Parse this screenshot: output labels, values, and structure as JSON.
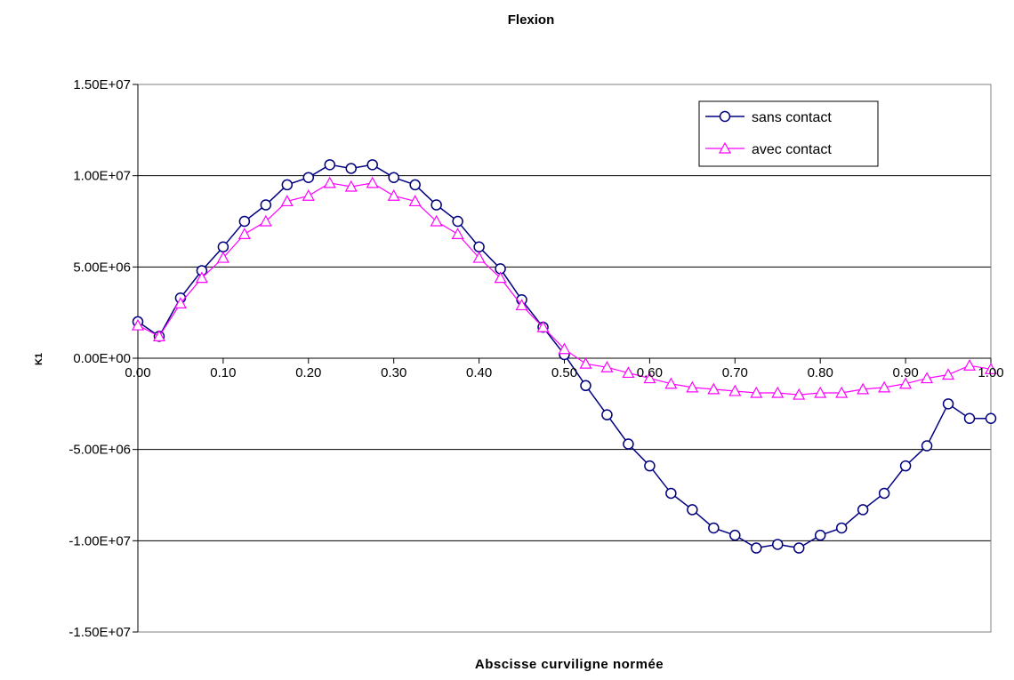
{
  "chart_data": {
    "type": "line",
    "title": "Flexion",
    "xlabel": "Abscisse curviligne normée",
    "ylabel": "K1",
    "xlim": [
      0,
      1
    ],
    "ylim": [
      -15000000,
      15000000
    ],
    "x_ticks": [
      {
        "value": 0.0,
        "label": "0.00"
      },
      {
        "value": 0.1,
        "label": "0.10"
      },
      {
        "value": 0.2,
        "label": "0.20"
      },
      {
        "value": 0.3,
        "label": "0.30"
      },
      {
        "value": 0.4,
        "label": "0.40"
      },
      {
        "value": 0.5,
        "label": "0.50"
      },
      {
        "value": 0.6,
        "label": "0.60"
      },
      {
        "value": 0.7,
        "label": "0.70"
      },
      {
        "value": 0.8,
        "label": "0.80"
      },
      {
        "value": 0.9,
        "label": "0.90"
      },
      {
        "value": 1.0,
        "label": "1.00"
      }
    ],
    "y_ticks": [
      {
        "value": 15000000,
        "label": "1.50E+07"
      },
      {
        "value": 10000000,
        "label": "1.00E+07"
      },
      {
        "value": 5000000,
        "label": "5.00E+06"
      },
      {
        "value": 0,
        "label": "0.00E+00"
      },
      {
        "value": -5000000,
        "label": "-5.00E+06"
      },
      {
        "value": -10000000,
        "label": "-1.00E+07"
      },
      {
        "value": -15000000,
        "label": "-1.50E+07"
      }
    ],
    "grid": "horizontal",
    "legend_position": "top-right",
    "x": [
      0.0,
      0.025,
      0.05,
      0.075,
      0.1,
      0.125,
      0.15,
      0.175,
      0.2,
      0.225,
      0.25,
      0.275,
      0.3,
      0.325,
      0.35,
      0.375,
      0.4,
      0.425,
      0.45,
      0.475,
      0.5,
      0.525,
      0.55,
      0.575,
      0.6,
      0.625,
      0.65,
      0.675,
      0.7,
      0.725,
      0.75,
      0.775,
      0.8,
      0.825,
      0.85,
      0.875,
      0.9,
      0.925,
      0.95,
      0.975,
      1.0
    ],
    "series": [
      {
        "name": "sans contact",
        "color": "#000080",
        "marker": "circle",
        "values": [
          2000000,
          1200000,
          3300000,
          4800000,
          6100000,
          7500000,
          8400000,
          9500000,
          9900000,
          10600000,
          10400000,
          10600000,
          9900000,
          9500000,
          8400000,
          7500000,
          6100000,
          4900000,
          3200000,
          1700000,
          200000,
          -1500000,
          -3100000,
          -4700000,
          -5900000,
          -7400000,
          -8300000,
          -9300000,
          -9700000,
          -10400000,
          -10200000,
          -10400000,
          -9700000,
          -9300000,
          -8300000,
          -7400000,
          -5900000,
          -4800000,
          -2500000,
          -3300000,
          -3300000
        ]
      },
      {
        "name": "avec contact",
        "color": "#ff00ff",
        "marker": "triangle",
        "values": [
          1800000,
          1200000,
          3000000,
          4400000,
          5500000,
          6800000,
          7500000,
          8600000,
          8900000,
          9600000,
          9400000,
          9600000,
          8900000,
          8600000,
          7500000,
          6800000,
          5500000,
          4400000,
          2900000,
          1700000,
          500000,
          -300000,
          -500000,
          -800000,
          -1100000,
          -1400000,
          -1600000,
          -1700000,
          -1800000,
          -1900000,
          -1900000,
          -2000000,
          -1900000,
          -1900000,
          -1700000,
          -1600000,
          -1400000,
          -1100000,
          -900000,
          -400000,
          -600000
        ]
      }
    ]
  }
}
